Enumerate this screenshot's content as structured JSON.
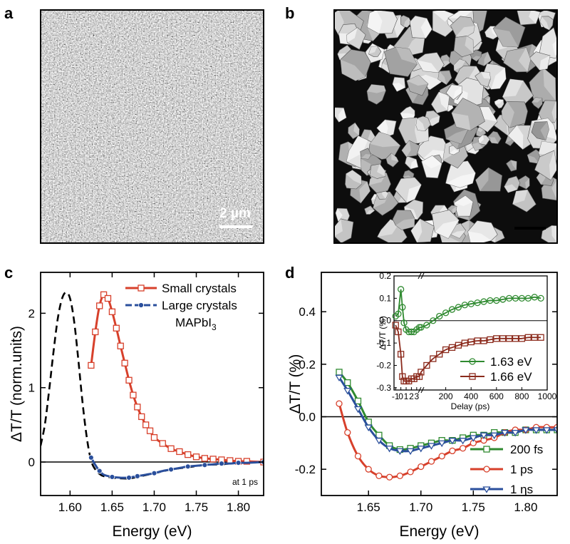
{
  "panels": {
    "a": {
      "label": "a",
      "scale_bar": "2 µm"
    },
    "b": {
      "label": "b"
    },
    "c": {
      "label": "c"
    },
    "d": {
      "label": "d"
    }
  },
  "colors": {
    "red": "#d7402b",
    "blue": "#2a4f9c",
    "green": "#2f8a30",
    "darkred": "#8b2a1c",
    "black": "#000000"
  },
  "chart_data": [
    {
      "id": "c",
      "type": "line",
      "xlabel": "Energy (eV)",
      "ylabel": "ΔT/T (norm.units)",
      "xlim": [
        1.565,
        1.83
      ],
      "ylim": [
        -0.45,
        2.55
      ],
      "xticks": [
        1.6,
        1.65,
        1.7,
        1.75,
        1.8
      ],
      "xtick_labels": [
        "1.60",
        "1.65",
        "1.70",
        "1.75",
        "1.80"
      ],
      "yticks": [
        0,
        1,
        2
      ],
      "ytick_labels": [
        "0",
        "1",
        "2"
      ],
      "annotation": "at 1 ps",
      "legend": [
        "Small crystals",
        "Large crystals",
        "MAPbI3"
      ],
      "series": [
        {
          "name": "Small crystals",
          "color": "#d7402b",
          "style": "solid-square",
          "x": [
            1.625,
            1.63,
            1.635,
            1.64,
            1.645,
            1.65,
            1.655,
            1.66,
            1.665,
            1.67,
            1.675,
            1.68,
            1.685,
            1.69,
            1.695,
            1.7,
            1.71,
            1.72,
            1.73,
            1.74,
            1.75,
            1.76,
            1.77,
            1.78,
            1.79,
            1.8,
            1.81,
            1.83
          ],
          "y": [
            1.3,
            1.75,
            2.1,
            2.25,
            2.2,
            2.02,
            1.8,
            1.56,
            1.33,
            1.1,
            0.9,
            0.74,
            0.61,
            0.5,
            0.42,
            0.33,
            0.25,
            0.18,
            0.14,
            0.1,
            0.07,
            0.05,
            0.04,
            0.03,
            0.02,
            0.01,
            0.01,
            0.0
          ]
        },
        {
          "name": "Large crystals",
          "color": "#2a4f9c",
          "style": "solid-dot",
          "x": [
            1.625,
            1.63,
            1.635,
            1.64,
            1.65,
            1.66,
            1.67,
            1.675,
            1.68,
            1.69,
            1.7,
            1.71,
            1.72,
            1.73,
            1.74,
            1.75,
            1.76,
            1.77,
            1.78,
            1.79,
            1.8,
            1.81,
            1.83
          ],
          "y": [
            0.06,
            -0.04,
            -0.12,
            -0.17,
            -0.2,
            -0.21,
            -0.21,
            -0.2,
            -0.19,
            -0.17,
            -0.15,
            -0.12,
            -0.1,
            -0.08,
            -0.06,
            -0.05,
            -0.04,
            -0.03,
            -0.02,
            -0.02,
            -0.01,
            -0.01,
            0.0
          ]
        },
        {
          "name": "MAPbI3",
          "color": "#000000",
          "style": "dashed",
          "x": [
            1.565,
            1.57,
            1.575,
            1.58,
            1.585,
            1.59,
            1.595,
            1.6,
            1.605,
            1.61,
            1.615,
            1.62,
            1.625,
            1.63,
            1.635,
            1.64,
            1.65,
            1.66,
            1.67,
            1.68,
            1.7,
            1.72,
            1.74,
            1.76,
            1.78,
            1.8,
            1.83
          ],
          "y": [
            0.22,
            0.5,
            0.95,
            1.45,
            1.9,
            2.18,
            2.28,
            2.2,
            1.88,
            1.35,
            0.78,
            0.32,
            0.02,
            -0.1,
            -0.16,
            -0.19,
            -0.21,
            -0.22,
            -0.22,
            -0.2,
            -0.15,
            -0.1,
            -0.07,
            -0.04,
            -0.03,
            -0.01,
            0.0
          ]
        }
      ]
    },
    {
      "id": "d",
      "type": "line",
      "xlabel": "Energy (eV)",
      "ylabel": "ΔT/T (%)",
      "xlim": [
        1.605,
        1.83
      ],
      "ylim": [
        -0.3,
        0.55
      ],
      "xticks": [
        1.65,
        1.7,
        1.75,
        1.8
      ],
      "xtick_labels": [
        "1.65",
        "1.70",
        "1.75",
        "1.80"
      ],
      "yticks": [
        -0.2,
        0.0,
        0.2,
        0.4
      ],
      "ytick_labels": [
        "-0.2",
        "0.0",
        "0.2",
        "0.4"
      ],
      "legend": [
        "200 fs",
        "1 ps",
        "1 ns"
      ],
      "series": [
        {
          "name": "200 fs",
          "color": "#2f8a30",
          "style": "square",
          "x": [
            1.622,
            1.63,
            1.64,
            1.65,
            1.66,
            1.67,
            1.68,
            1.69,
            1.7,
            1.71,
            1.72,
            1.73,
            1.74,
            1.75,
            1.76,
            1.77,
            1.78,
            1.79,
            1.8,
            1.81,
            1.82,
            1.83
          ],
          "y": [
            0.17,
            0.13,
            0.06,
            -0.02,
            -0.07,
            -0.11,
            -0.125,
            -0.12,
            -0.11,
            -0.1,
            -0.09,
            -0.09,
            -0.08,
            -0.07,
            -0.07,
            -0.06,
            -0.06,
            -0.06,
            -0.05,
            -0.05,
            -0.05,
            -0.05
          ]
        },
        {
          "name": "1 ps",
          "color": "#d7402b",
          "style": "circle",
          "x": [
            1.622,
            1.63,
            1.64,
            1.65,
            1.66,
            1.67,
            1.68,
            1.69,
            1.7,
            1.71,
            1.72,
            1.73,
            1.74,
            1.75,
            1.76,
            1.77,
            1.78,
            1.79,
            1.8,
            1.81,
            1.82,
            1.83
          ],
          "y": [
            0.05,
            -0.06,
            -0.15,
            -0.2,
            -0.225,
            -0.23,
            -0.225,
            -0.21,
            -0.19,
            -0.17,
            -0.15,
            -0.13,
            -0.12,
            -0.1,
            -0.09,
            -0.08,
            -0.06,
            -0.05,
            -0.05,
            -0.04,
            -0.04,
            -0.04
          ]
        },
        {
          "name": "1 ns",
          "color": "#2a4f9c",
          "style": "triangle",
          "x": [
            1.622,
            1.63,
            1.64,
            1.65,
            1.66,
            1.67,
            1.68,
            1.69,
            1.7,
            1.71,
            1.72,
            1.73,
            1.74,
            1.75,
            1.76,
            1.77,
            1.78,
            1.79,
            1.8,
            1.81,
            1.82,
            1.83
          ],
          "y": [
            0.15,
            0.1,
            0.03,
            -0.04,
            -0.09,
            -0.12,
            -0.13,
            -0.13,
            -0.12,
            -0.11,
            -0.1,
            -0.09,
            -0.09,
            -0.08,
            -0.07,
            -0.07,
            -0.06,
            -0.06,
            -0.05,
            -0.05,
            -0.05,
            -0.05
          ]
        }
      ]
    },
    {
      "id": "d-inset",
      "type": "line",
      "xlabel": "Delay (ps)",
      "ylabel": "ΔT/T (%)",
      "ylim": [
        -0.31,
        0.2
      ],
      "yticks": [
        -0.3,
        -0.2,
        -0.1,
        0.0,
        0.1,
        0.2
      ],
      "ytick_labels": [
        "-0.3",
        "-0.2",
        "-0.1",
        "0.0",
        "0.1",
        "0.2"
      ],
      "xtick_labels_left": [
        "-1",
        "0",
        "1",
        "2",
        "3"
      ],
      "xticks_left": [
        -1,
        0,
        1,
        2,
        3
      ],
      "xticks_right": [
        200,
        400,
        600,
        800,
        1000
      ],
      "xtick_labels_right": [
        "200",
        "400",
        "600",
        "800",
        "1000"
      ],
      "legend": [
        "1.63 eV",
        "1.66 eV"
      ],
      "series": [
        {
          "name": "1.63 eV",
          "color": "#2f8a30",
          "style": "circle-open",
          "early_x": [
            -1,
            -0.5,
            0,
            0.3,
            0.6,
            1,
            1.5,
            2,
            2.5,
            3,
            3.5
          ],
          "early_y": [
            0.02,
            0.03,
            0.14,
            0.06,
            -0.01,
            -0.04,
            -0.05,
            -0.05,
            -0.05,
            -0.04,
            -0.03
          ],
          "late_x": [
            5,
            50,
            100,
            150,
            200,
            250,
            300,
            350,
            400,
            450,
            500,
            550,
            600,
            650,
            700,
            750,
            800,
            850,
            900,
            950
          ],
          "late_y": [
            -0.03,
            -0.02,
            0.0,
            0.02,
            0.035,
            0.05,
            0.06,
            0.07,
            0.075,
            0.08,
            0.085,
            0.09,
            0.09,
            0.095,
            0.1,
            0.1,
            0.1,
            0.1,
            0.105,
            0.1
          ]
        },
        {
          "name": "1.66 eV",
          "color": "#8b2a1c",
          "style": "square-open",
          "early_x": [
            -1,
            -0.5,
            0,
            0.3,
            0.6,
            1,
            1.5,
            2,
            2.5,
            3,
            3.5
          ],
          "early_y": [
            -0.02,
            -0.05,
            -0.15,
            -0.25,
            -0.27,
            -0.27,
            -0.27,
            -0.26,
            -0.26,
            -0.25,
            -0.25
          ],
          "late_x": [
            5,
            50,
            100,
            150,
            200,
            250,
            300,
            350,
            400,
            450,
            500,
            550,
            600,
            650,
            700,
            750,
            800,
            850,
            900,
            950
          ],
          "late_y": [
            -0.23,
            -0.2,
            -0.17,
            -0.15,
            -0.13,
            -0.12,
            -0.11,
            -0.1,
            -0.095,
            -0.09,
            -0.09,
            -0.085,
            -0.08,
            -0.08,
            -0.08,
            -0.08,
            -0.08,
            -0.075,
            -0.075,
            -0.075
          ]
        }
      ]
    }
  ]
}
